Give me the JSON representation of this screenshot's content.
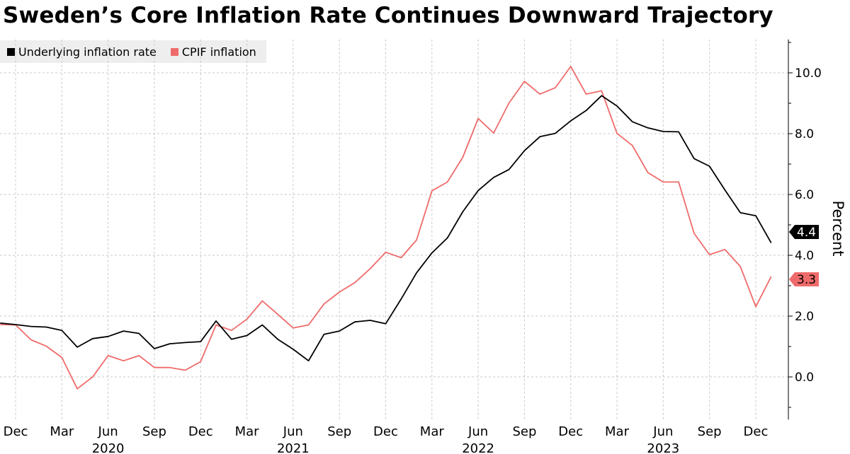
{
  "chart_data": {
    "type": "line",
    "title": "Sweden’s Core Inflation Rate Continues Downward Trajectory",
    "ylabel": "Percent",
    "xlabel": "",
    "ylim": [
      -1.4,
      11.1
    ],
    "yticks": [
      "0.0",
      "2.0",
      "4.0",
      "6.0",
      "8.0",
      "10.0"
    ],
    "grid": true,
    "legend": "top-left",
    "x": [
      "2019-11",
      "2019-12",
      "2020-01",
      "2020-02",
      "2020-03",
      "2020-04",
      "2020-05",
      "2020-06",
      "2020-07",
      "2020-08",
      "2020-09",
      "2020-10",
      "2020-11",
      "2020-12",
      "2021-01",
      "2021-02",
      "2021-03",
      "2021-04",
      "2021-05",
      "2021-06",
      "2021-07",
      "2021-08",
      "2021-09",
      "2021-10",
      "2021-11",
      "2021-12",
      "2022-01",
      "2022-02",
      "2022-03",
      "2022-04",
      "2022-05",
      "2022-06",
      "2022-07",
      "2022-08",
      "2022-09",
      "2022-10",
      "2022-11",
      "2022-12",
      "2023-01",
      "2023-02",
      "2023-03",
      "2023-04",
      "2023-05",
      "2023-06",
      "2023-07",
      "2023-08",
      "2023-09",
      "2023-10",
      "2023-11",
      "2023-12",
      "2024-01"
    ],
    "xtick_labels": [
      {
        "month": "Dec",
        "date": "2019-12"
      },
      {
        "month": "Mar",
        "date": "2020-03"
      },
      {
        "month": "Jun",
        "date": "2020-06"
      },
      {
        "month": "Sep",
        "date": "2020-09"
      },
      {
        "month": "Dec",
        "date": "2020-12"
      },
      {
        "month": "Mar",
        "date": "2021-03"
      },
      {
        "month": "Jun",
        "date": "2021-06"
      },
      {
        "month": "Sep",
        "date": "2021-09"
      },
      {
        "month": "Dec",
        "date": "2021-12"
      },
      {
        "month": "Mar",
        "date": "2022-03"
      },
      {
        "month": "Jun",
        "date": "2022-06"
      },
      {
        "month": "Sep",
        "date": "2022-09"
      },
      {
        "month": "Dec",
        "date": "2022-12"
      },
      {
        "month": "Mar",
        "date": "2023-03"
      },
      {
        "month": "Jun",
        "date": "2023-06"
      },
      {
        "month": "Sep",
        "date": "2023-09"
      },
      {
        "month": "Dec",
        "date": "2023-12"
      }
    ],
    "year_labels": [
      {
        "year": "2020",
        "date": "2020-06"
      },
      {
        "year": "2021",
        "date": "2021-06"
      },
      {
        "year": "2022",
        "date": "2022-06"
      },
      {
        "year": "2023",
        "date": "2023-06"
      }
    ],
    "series": [
      {
        "name": "Underlying inflation rate",
        "color": "#000000",
        "last_label": "4.4",
        "values": [
          1.77,
          1.72,
          1.66,
          1.64,
          1.53,
          0.98,
          1.26,
          1.33,
          1.51,
          1.43,
          0.93,
          1.09,
          1.13,
          1.16,
          1.84,
          1.24,
          1.36,
          1.71,
          1.24,
          0.91,
          0.53,
          1.4,
          1.51,
          1.81,
          1.86,
          1.75,
          2.56,
          3.42,
          4.08,
          4.57,
          5.43,
          6.13,
          6.56,
          6.82,
          7.44,
          7.9,
          8.01,
          8.42,
          8.76,
          9.25,
          8.91,
          8.39,
          8.19,
          8.07,
          8.06,
          7.18,
          6.93,
          6.15,
          5.4,
          5.3,
          4.41
        ]
      },
      {
        "name": "CPIF inflation",
        "color": "#ef6b6b",
        "last_label": "3.3",
        "values": [
          1.72,
          1.71,
          1.22,
          1.01,
          0.64,
          -0.39,
          0.0,
          0.7,
          0.53,
          0.7,
          0.31,
          0.31,
          0.22,
          0.5,
          1.71,
          1.53,
          1.9,
          2.5,
          2.06,
          1.61,
          1.71,
          2.4,
          2.79,
          3.1,
          3.56,
          4.1,
          3.92,
          4.5,
          6.12,
          6.41,
          7.22,
          8.5,
          8.02,
          9.01,
          9.72,
          9.3,
          9.51,
          10.21,
          9.3,
          9.41,
          8.01,
          7.61,
          6.72,
          6.41,
          6.41,
          4.72,
          4.02,
          4.19,
          3.63,
          2.31,
          3.3
        ]
      }
    ]
  }
}
